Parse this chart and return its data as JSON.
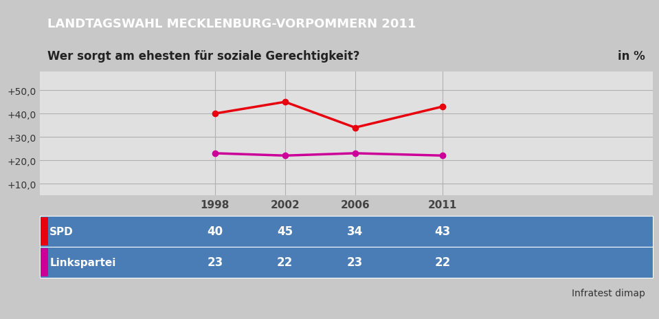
{
  "title": "LANDTAGSWAHL MECKLENBURG-VORPOMMERN 2011",
  "subtitle": "Wer sorgt am ehesten für soziale Gerechtigkeit?",
  "subtitle_right": "in %",
  "title_bg_color": "#1a3a6b",
  "title_text_color": "#ffffff",
  "subtitle_bg_color": "#f0f0f0",
  "subtitle_text_color": "#222222",
  "outer_bg_color": "#c8c8c8",
  "plot_bg_color": "#e0e0e0",
  "years": [
    1998,
    2002,
    2006,
    2011
  ],
  "series": [
    {
      "name": "SPD",
      "values": [
        40,
        45,
        34,
        43
      ],
      "color": "#e8000e",
      "marker": "o",
      "linewidth": 2.5
    },
    {
      "name": "Linkspartei",
      "values": [
        23,
        22,
        23,
        22
      ],
      "color": "#cc0099",
      "marker": "o",
      "linewidth": 2.5
    }
  ],
  "yticks": [
    10,
    20,
    30,
    40,
    50
  ],
  "ytick_labels": [
    "+10,0",
    "+20,0",
    "+30,0",
    "+40,0",
    "+50,0"
  ],
  "ylim": [
    5,
    58
  ],
  "xlim": [
    1988,
    2023
  ],
  "table_bg_color": "#4a7db5",
  "table_text_color": "#ffffff",
  "table_year_color": "#444444",
  "source_text": "Infratest dimap",
  "source_text_color": "#333333",
  "grid_color": "#b0b0b0",
  "title_fontsize": 13,
  "subtitle_fontsize": 12,
  "ytick_fontsize": 10,
  "year_label_fontsize": 11,
  "table_name_fontsize": 11,
  "table_val_fontsize": 12,
  "source_fontsize": 10
}
